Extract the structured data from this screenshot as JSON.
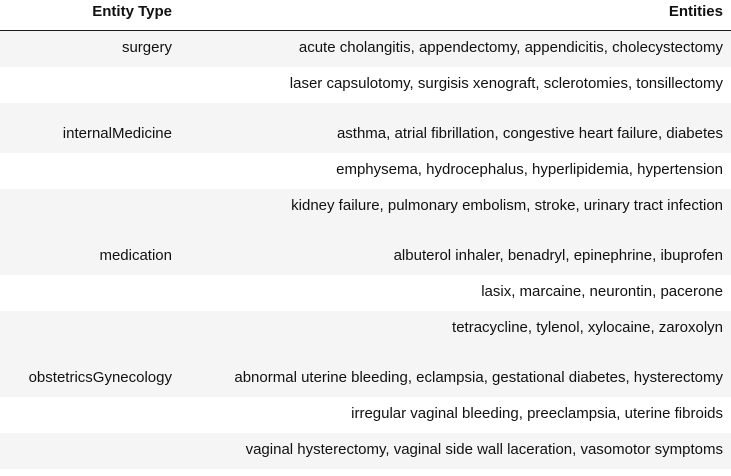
{
  "table": {
    "headers": {
      "entity_type": "Entity Type",
      "entities": "Entities"
    },
    "groups": [
      {
        "type": "surgery",
        "lines": [
          "acute cholangitis, appendectomy, appendicitis, cholecystectomy",
          "laser capsulotomy, surgisis xenograft, sclerotomies, tonsillectomy"
        ]
      },
      {
        "type": "internalMedicine",
        "lines": [
          "asthma, atrial fibrillation, congestive heart failure, diabetes",
          "emphysema, hydrocephalus, hyperlipidemia, hypertension",
          "kidney failure, pulmonary embolism, stroke, urinary tract infection"
        ]
      },
      {
        "type": "medication",
        "lines": [
          "albuterol inhaler, benadryl, epinephrine, ibuprofen",
          "lasix, marcaine, neurontin, pacerone",
          "tetracycline, tylenol, xylocaine, zaroxolyn"
        ]
      },
      {
        "type": "obstetricsGynecology",
        "lines": [
          "abnormal uterine bleeding, eclampsia, gestational diabetes, hysterectomy",
          "irregular vaginal bleeding, preeclampsia, uterine fibroids",
          "vaginal hysterectomy, vaginal side wall laceration, vasomotor symptoms"
        ]
      }
    ]
  }
}
